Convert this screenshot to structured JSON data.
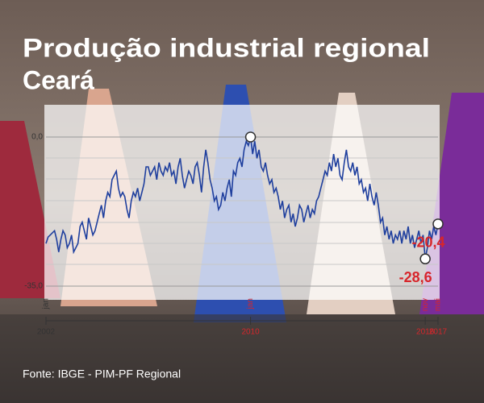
{
  "chart_data": {
    "type": "line",
    "title": "Produção industrial regional",
    "subtitle": "Ceará",
    "source": "Fonte: IBGE - PIM-PF Regional",
    "color": "#1f3f9e",
    "ylim": [
      -35,
      0
    ],
    "yticks": [
      {
        "value": 0,
        "label": "0,0"
      },
      {
        "value": -35,
        "label": "-35,0"
      }
    ],
    "categories": [
      "jan",
      null,
      null,
      null,
      null,
      null,
      null,
      null,
      null,
      null,
      null,
      null,
      null,
      null,
      null,
      null,
      null,
      null,
      null,
      null,
      null,
      null,
      null,
      null,
      null,
      null,
      null,
      null,
      null,
      null,
      null,
      null,
      null,
      null,
      null,
      null,
      null,
      null,
      null,
      null,
      null,
      null,
      null,
      null,
      null,
      null,
      null,
      null,
      null,
      null,
      null,
      null,
      null,
      null,
      null,
      null,
      null,
      null,
      null,
      null,
      null,
      null,
      null,
      null,
      null,
      null,
      null,
      null,
      null,
      null,
      null,
      null,
      null,
      null,
      null,
      null,
      null,
      null,
      null,
      null,
      null,
      null,
      null,
      null,
      null,
      null,
      null,
      null,
      null,
      null,
      null,
      null,
      null,
      null,
      null,
      null,
      "jan",
      null,
      null,
      null,
      null,
      null,
      null,
      null,
      null,
      null,
      null,
      null,
      null,
      null,
      null,
      null,
      null,
      null,
      null,
      null,
      null,
      null,
      null,
      null,
      null,
      null,
      null,
      null,
      null,
      null,
      null,
      null,
      null,
      null,
      null,
      null,
      null,
      null,
      null,
      null,
      null,
      null,
      null,
      null,
      null,
      null,
      null,
      null,
      null,
      null,
      null,
      null,
      null,
      null,
      null,
      null,
      null,
      null,
      null,
      null,
      null,
      null,
      null,
      null,
      null,
      null,
      null,
      null,
      null,
      null,
      null,
      null,
      null,
      null,
      null,
      null,
      null,
      null,
      null,
      null,
      null,
      null,
      "nov",
      null,
      null,
      null,
      null,
      null,
      "mai"
    ],
    "years": [
      "2002",
      null,
      null,
      null,
      null,
      null,
      null,
      null,
      null,
      null,
      null,
      null,
      null,
      null,
      null,
      null,
      null,
      null,
      null,
      null,
      null,
      null,
      null,
      null,
      null,
      null,
      null,
      null,
      null,
      null,
      null,
      null,
      null,
      null,
      null,
      null,
      null,
      null,
      null,
      null,
      null,
      null,
      null,
      null,
      null,
      null,
      null,
      null,
      null,
      null,
      null,
      null,
      null,
      null,
      null,
      null,
      null,
      null,
      null,
      null,
      null,
      null,
      null,
      null,
      null,
      null,
      null,
      null,
      null,
      null,
      null,
      null,
      null,
      null,
      null,
      null,
      null,
      null,
      null,
      null,
      null,
      null,
      null,
      null,
      null,
      null,
      null,
      null,
      null,
      null,
      null,
      null,
      null,
      null,
      null,
      null,
      "2010",
      null,
      null,
      null,
      null,
      null,
      null,
      null,
      null,
      null,
      null,
      null,
      null,
      null,
      null,
      null,
      null,
      null,
      null,
      null,
      null,
      null,
      null,
      null,
      null,
      null,
      null,
      null,
      null,
      null,
      null,
      null,
      null,
      null,
      null,
      null,
      null,
      null,
      null,
      null,
      null,
      null,
      null,
      null,
      null,
      null,
      null,
      null,
      null,
      null,
      null,
      null,
      null,
      null,
      null,
      null,
      null,
      null,
      null,
      null,
      null,
      null,
      null,
      null,
      null,
      null,
      null,
      null,
      null,
      null,
      null,
      null,
      null,
      null,
      null,
      null,
      null,
      null,
      null,
      null,
      null,
      null,
      "2016",
      null,
      null,
      null,
      null,
      null,
      "2017"
    ],
    "values": [
      -25,
      -23.5,
      -23,
      -22.5,
      -22,
      -24,
      -27,
      -24,
      -22,
      -23,
      -26,
      -25,
      -23,
      -27,
      -26,
      -25,
      -21,
      -20,
      -22,
      -24,
      -19,
      -21,
      -23,
      -22,
      -20,
      -18,
      -16,
      -19,
      -15,
      -13,
      -14,
      -10,
      -9,
      -8,
      -12,
      -14,
      -13,
      -14,
      -17,
      -19,
      -15,
      -13,
      -14,
      -12,
      -15,
      -13,
      -11,
      -7,
      -7,
      -9,
      -8,
      -7,
      -10,
      -6,
      -8,
      -9,
      -7,
      -8,
      -6,
      -9,
      -8,
      -11,
      -7,
      -5,
      -9,
      -12,
      -10,
      -8,
      -9,
      -11,
      -7,
      -6,
      -9,
      -13,
      -7,
      -3,
      -6,
      -10,
      -12,
      -15,
      -14,
      -17,
      -16,
      -13,
      -15,
      -12,
      -10,
      -14,
      -8,
      -9,
      -6,
      -5,
      -7,
      -3,
      -1,
      -2,
      0,
      -4,
      -1,
      -5,
      -3,
      -7,
      -8,
      -6,
      -9,
      -11,
      -10,
      -13,
      -12,
      -14,
      -17,
      -15,
      -19,
      -17,
      -16,
      -20,
      -18,
      -21,
      -19,
      -16,
      -17,
      -20,
      -18,
      -16,
      -19,
      -17,
      -18,
      -15,
      -14,
      -12,
      -10,
      -8,
      -9,
      -6,
      -8,
      -4,
      -7,
      -5,
      -9,
      -10,
      -6,
      -3,
      -7,
      -8,
      -6,
      -9,
      -7,
      -11,
      -10,
      -13,
      -12,
      -15,
      -11,
      -14,
      -16,
      -13,
      -16,
      -20,
      -19,
      -23,
      -21,
      -24,
      -22,
      -25,
      -23,
      -24,
      -22,
      -25,
      -22,
      -24,
      -21,
      -25,
      -23,
      -26,
      -24,
      -22,
      -25,
      -23,
      -28.6,
      -26,
      -22,
      -24,
      -21,
      -23,
      -20.4
    ],
    "value_labels": [
      null,
      null,
      null,
      null,
      null,
      null,
      null,
      null,
      null,
      null,
      null,
      null,
      null,
      null,
      null,
      null,
      null,
      null,
      null,
      null,
      null,
      null,
      null,
      null,
      null,
      null,
      null,
      null,
      null,
      null,
      null,
      null,
      null,
      null,
      null,
      null,
      null,
      null,
      null,
      null,
      null,
      null,
      null,
      null,
      null,
      null,
      null,
      null,
      null,
      null,
      null,
      null,
      null,
      null,
      null,
      null,
      null,
      null,
      null,
      null,
      null,
      null,
      null,
      null,
      null,
      null,
      null,
      null,
      null,
      null,
      null,
      null,
      null,
      null,
      null,
      null,
      null,
      null,
      null,
      null,
      null,
      null,
      null,
      null,
      null,
      null,
      null,
      null,
      null,
      null,
      null,
      null,
      null,
      null,
      null,
      null,
      null,
      null,
      null,
      null,
      null,
      null,
      null,
      null,
      null,
      null,
      null,
      null,
      null,
      null,
      null,
      null,
      null,
      null,
      null,
      null,
      null,
      null,
      null,
      null,
      null,
      null,
      null,
      null,
      null,
      null,
      null,
      null,
      null,
      null,
      null,
      null,
      null,
      null,
      null,
      null,
      null,
      null,
      null,
      null,
      null,
      null,
      null,
      null,
      null,
      null,
      null,
      null,
      null,
      null,
      null,
      null,
      null,
      null,
      null,
      null,
      null,
      null,
      null,
      null,
      null,
      null,
      null,
      null,
      null,
      null,
      null,
      null,
      null,
      null,
      null,
      null,
      null,
      null,
      null,
      null,
      null,
      null,
      "-28,6",
      null,
      null,
      null,
      null,
      null,
      "-20,4"
    ]
  }
}
